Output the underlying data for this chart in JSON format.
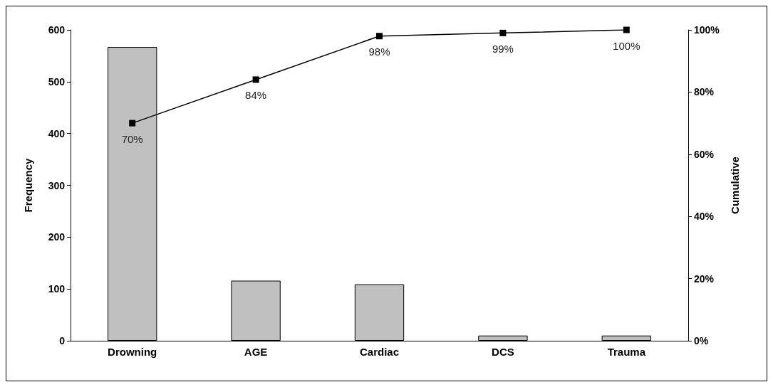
{
  "chart_data": {
    "type": "bar",
    "ylabel": "Frequency",
    "y2label": "Cumulative",
    "categories": [
      "Drowning",
      "AGE",
      "Cardiac",
      "DCS",
      "Trauma"
    ],
    "series": [
      {
        "color": "#c0c0c0",
        "values": [
          567,
          116,
          109,
          10,
          10
        ]
      },
      {
        "type": "line",
        "axis": "y2",
        "color": "#000000",
        "values": [
          70,
          84,
          98,
          99,
          100
        ],
        "value_labels": [
          "70%",
          "84%",
          "98%",
          "99%",
          "100%"
        ]
      }
    ],
    "ylim": [
      0,
      600
    ],
    "yticks": [
      0,
      100,
      200,
      300,
      400,
      500,
      600
    ],
    "y2lim": [
      0,
      100
    ],
    "y2ticks": [
      {
        "value": 0,
        "label": "0%"
      },
      {
        "value": 20,
        "label": "20%"
      },
      {
        "value": 40,
        "label": "40%"
      },
      {
        "value": 60,
        "label": "60%"
      },
      {
        "value": 80,
        "label": "80%"
      },
      {
        "value": 100,
        "label": "100%"
      }
    ],
    "marker": "square",
    "grid": false
  }
}
